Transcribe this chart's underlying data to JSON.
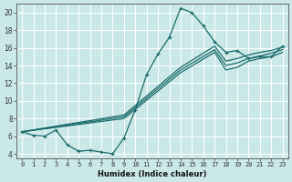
{
  "xlabel": "Humidex (Indice chaleur)",
  "bg_color": "#cbe8e8",
  "grid_color": "#b8d8d8",
  "line_color": "#1a6b6b",
  "xlim": [
    -0.5,
    23.5
  ],
  "ylim": [
    3.5,
    21
  ],
  "yticks": [
    4,
    6,
    8,
    10,
    12,
    14,
    16,
    18,
    20
  ],
  "xticks": [
    0,
    1,
    2,
    3,
    4,
    5,
    6,
    7,
    8,
    9,
    10,
    11,
    12,
    13,
    14,
    15,
    16,
    17,
    18,
    19,
    20,
    21,
    22,
    23
  ],
  "series_main": {
    "x": [
      0,
      1,
      2,
      3,
      4,
      5,
      6,
      7,
      8,
      9,
      10,
      11,
      12,
      13,
      14,
      15,
      16,
      17,
      18,
      19,
      20,
      21,
      22,
      23
    ],
    "y": [
      6.5,
      6.1,
      6.0,
      6.7,
      5.0,
      4.3,
      4.4,
      4.2,
      4.0,
      5.8,
      9.0,
      13.0,
      15.3,
      17.2,
      20.5,
      20.0,
      18.5,
      16.7,
      15.5,
      15.7,
      14.8,
      15.0,
      15.0,
      16.2
    ]
  },
  "series_lines": [
    {
      "x": [
        0,
        9,
        14,
        17,
        18,
        19,
        20,
        21,
        22,
        23
      ],
      "y": [
        6.5,
        8.0,
        13.2,
        15.5,
        13.5,
        13.8,
        14.5,
        14.8,
        15.0,
        15.5
      ]
    },
    {
      "x": [
        0,
        9,
        14,
        17,
        18,
        19,
        20,
        21,
        22,
        23
      ],
      "y": [
        6.5,
        8.2,
        13.5,
        15.8,
        14.0,
        14.3,
        14.8,
        15.1,
        15.4,
        15.8
      ]
    },
    {
      "x": [
        0,
        9,
        14,
        17,
        18,
        19,
        20,
        21,
        22,
        23
      ],
      "y": [
        6.5,
        8.4,
        13.8,
        16.2,
        14.5,
        14.8,
        15.2,
        15.5,
        15.7,
        16.1
      ]
    }
  ]
}
